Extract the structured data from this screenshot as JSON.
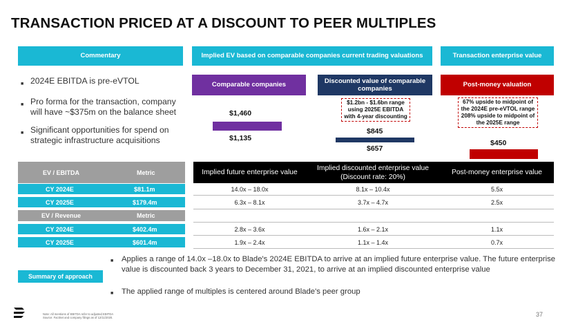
{
  "title": "TRANSACTION PRICED AT A DISCOUNT TO PEER MULTIPLES",
  "headers": {
    "commentary": "Commentary",
    "implied_ev": "Implied EV based on comparable companies current trading valuations",
    "transaction_ev": "Transaction enterprise value"
  },
  "subheaders": {
    "comparable": "Comparable companies",
    "discounted": "Discounted value of comparable companies",
    "post_money": "Post-money valuation"
  },
  "bullets": [
    "2024E EBITDA is pre-eVTOL",
    "Pro forma for the transaction, company will have ~$375m on the balance sheet",
    "Significant opportunities for spend on strategic infrastructure acquisitions"
  ],
  "chart_data": {
    "type": "bar",
    "series": [
      {
        "name": "Comparable companies",
        "low": 1135,
        "high": 1460,
        "color": "#7030a0"
      },
      {
        "name": "Discounted value of comparable companies",
        "low": 657,
        "high": 845,
        "color": "#1f3864"
      },
      {
        "name": "Post-money valuation",
        "value": 450,
        "color": "#c00000"
      }
    ],
    "labels": {
      "comp_high": "$1,460",
      "comp_low": "$1,135",
      "disc_high": "$845",
      "disc_low": "$657",
      "post": "$450"
    }
  },
  "callouts": {
    "discounted": "$1.2bn - $1.6bn range using 2025E EBITDA with 4-year discounting",
    "post_money": "67% upside to midpoint of the 2024E pre-eVTOL range 208% upside to midpoint of the 2025E range"
  },
  "table": {
    "columns": [
      "Implied future enterprise value",
      "Implied discounted enterprise value (Discount rate: 20%)",
      "Post-money enterprise value"
    ],
    "groups": [
      {
        "name": "EV / EBITDA",
        "metric_label": "Metric",
        "rows": [
          {
            "period": "CY 2024E",
            "metric": "$81.1m",
            "values": [
              "14.0x – 18.0x",
              "8.1x – 10.4x",
              "5.5x"
            ]
          },
          {
            "period": "CY 2025E",
            "metric": "$179.4m",
            "values": [
              "6.3x – 8.1x",
              "3.7x – 4.7x",
              "2.5x"
            ]
          }
        ]
      },
      {
        "name": "EV / Revenue",
        "metric_label": "Metric",
        "rows": [
          {
            "period": "CY 2024E",
            "metric": "$402.4m",
            "values": [
              "2.8x – 3.6x",
              "1.6x – 2.1x",
              "1.1x"
            ]
          },
          {
            "period": "CY 2025E",
            "metric": "$601.4m",
            "values": [
              "1.9x – 2.4x",
              "1.1x – 1.4x",
              "0.7x"
            ]
          }
        ]
      }
    ]
  },
  "summary": {
    "label": "Summary of approach",
    "bullets": [
      "Applies a range of 14.0x –18.0x to Blade's 2024E EBITDA to arrive at an implied future enterprise value. The future enterprise value is discounted back 3 years to December 31, 2021, to arrive at an implied discounted enterprise value",
      "The applied range of multiples is centered around Blade's peer group"
    ]
  },
  "footnote": {
    "line1": "Note: All mentions of EBITDA refer to adjusted EBITDA",
    "line2": "Source: FactSet and company filings as of 12/11/2020."
  },
  "page_number": "37",
  "logo_icon": "blade-logo-icon"
}
